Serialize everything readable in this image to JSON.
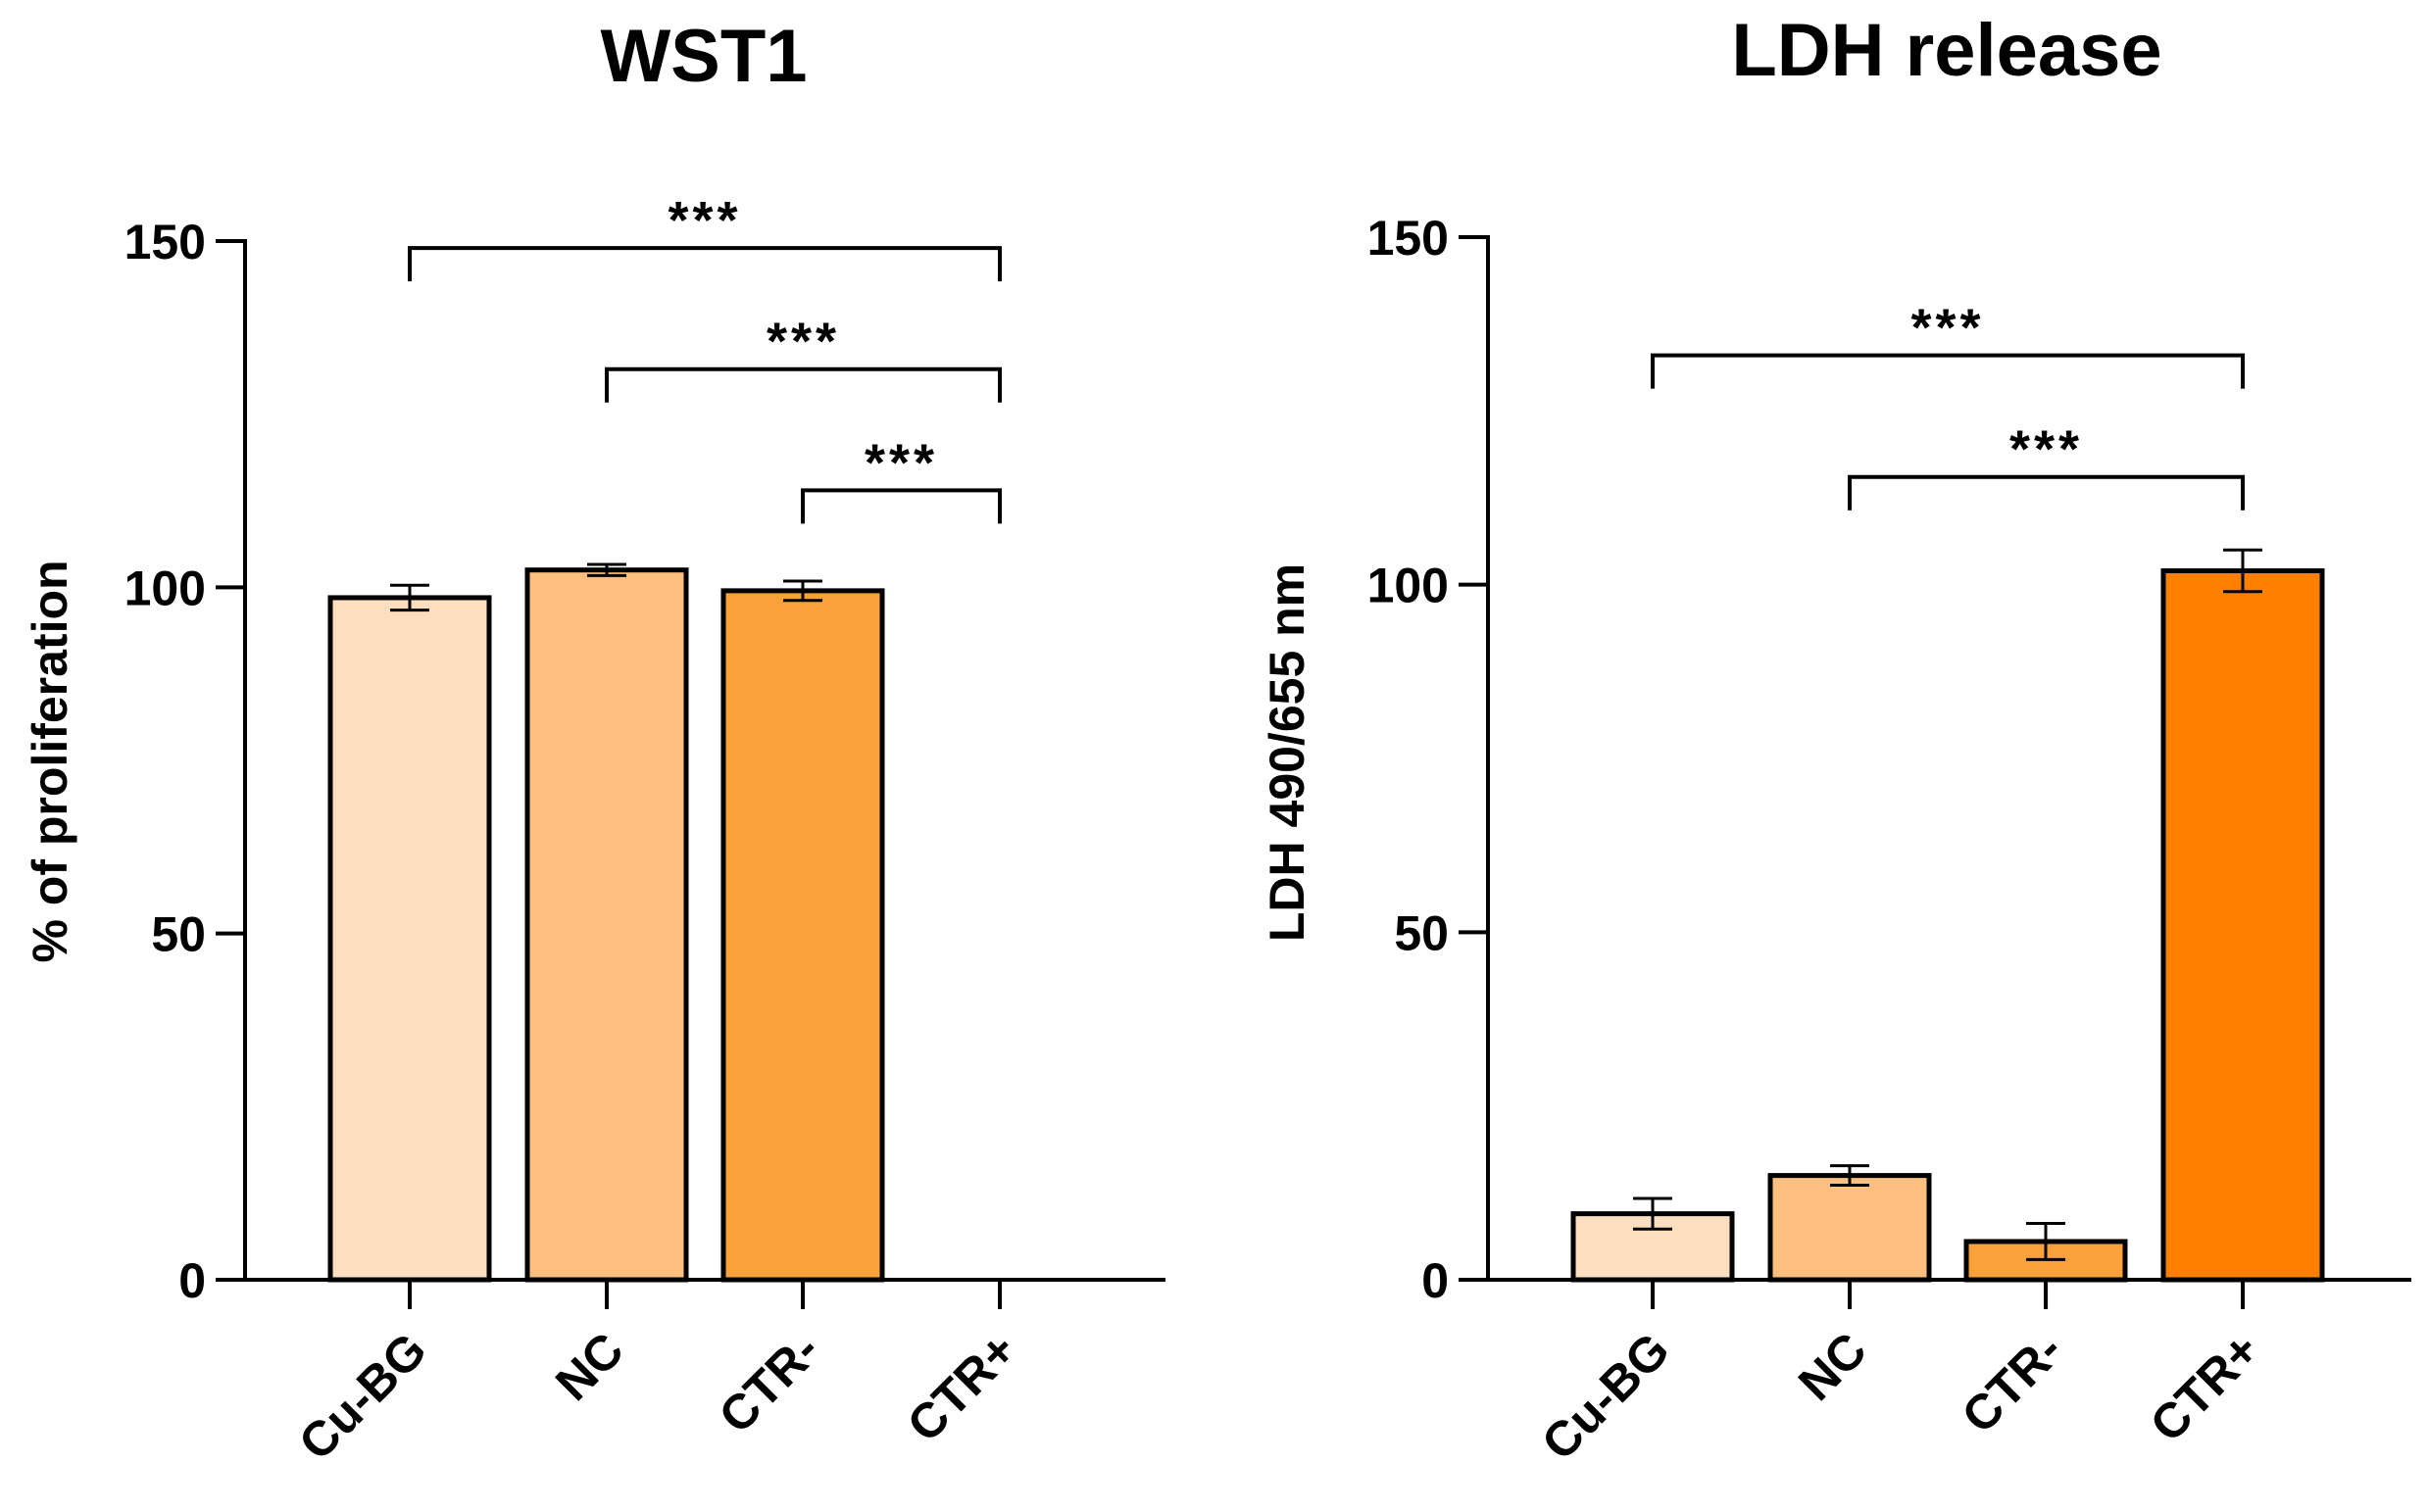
{
  "chart_data": [
    {
      "type": "bar",
      "title": "WST1",
      "ylabel": "% of proliferation",
      "xlabel": "",
      "ylim": [
        0,
        150
      ],
      "yticks": [
        0,
        50,
        100,
        150
      ],
      "categories": [
        "Cu-BG",
        "NC",
        "CTR-",
        "CTR+"
      ],
      "values": [
        98.5,
        102.5,
        99.5,
        0
      ],
      "errors": [
        1.8,
        0.8,
        1.4,
        0
      ],
      "colors": [
        "#FDDFBF",
        "#FCBF80",
        "#FBA13A",
        "#FF8000"
      ],
      "significance": [
        {
          "from": "Cu-BG",
          "to": "CTR+",
          "label": "***",
          "y": 149
        },
        {
          "from": "NC",
          "to": "CTR+",
          "label": "***",
          "y": 131.5
        },
        {
          "from": "CTR-",
          "to": "CTR+",
          "label": "***",
          "y": 114
        }
      ]
    },
    {
      "type": "bar",
      "title": "LDH release",
      "ylabel": "LDH 490/655 nm",
      "xlabel": "",
      "ylim": [
        0,
        150
      ],
      "yticks": [
        0,
        50,
        100,
        150
      ],
      "categories": [
        "Cu-BG",
        "NC",
        "CTR-",
        "CTR+"
      ],
      "values": [
        9.5,
        15,
        5.5,
        102
      ],
      "errors": [
        2.2,
        1.4,
        2.6,
        3
      ],
      "colors": [
        "#FDDFBF",
        "#FCBF80",
        "#FBA13A",
        "#FF8000"
      ],
      "significance": [
        {
          "from": "Cu-BG",
          "to": "CTR+",
          "label": "***",
          "y": 133
        },
        {
          "from": "NC",
          "to": "CTR+",
          "label": "***",
          "y": 115.5
        }
      ]
    }
  ]
}
